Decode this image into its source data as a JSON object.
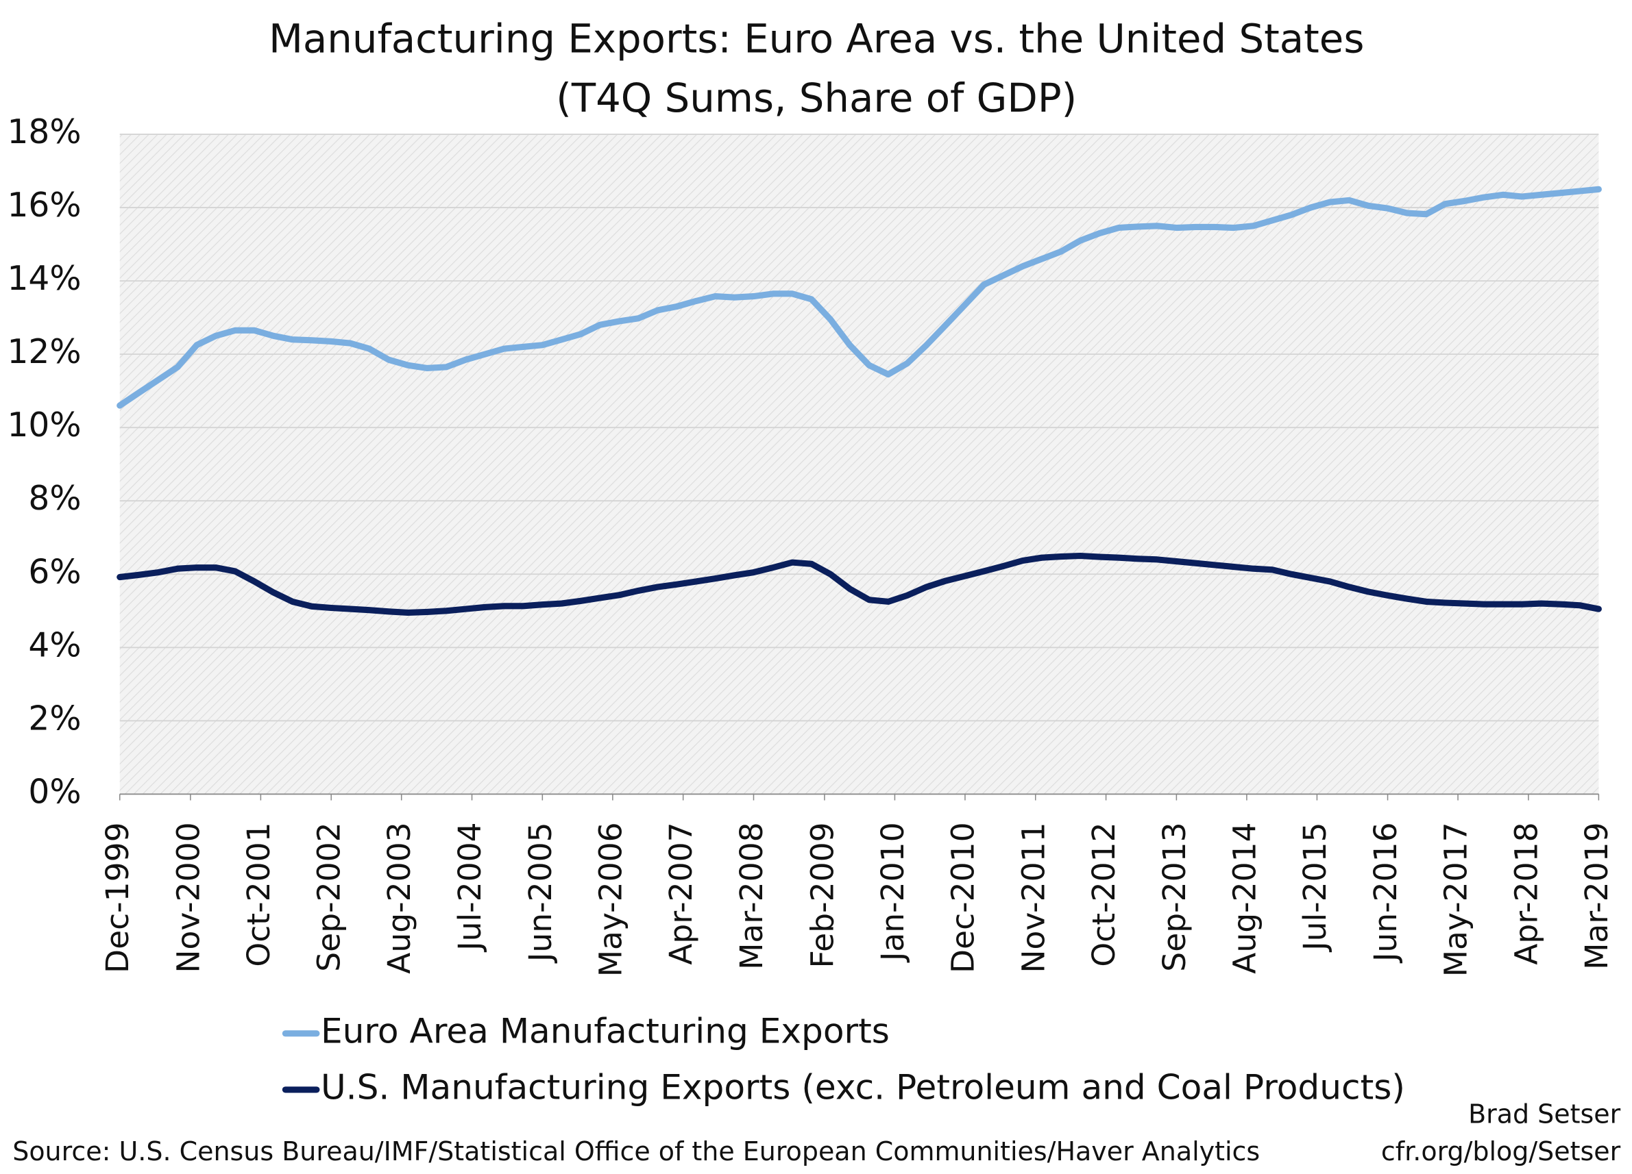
{
  "chart_data": {
    "type": "line",
    "title": "Manufacturing Exports: Euro Area vs. the United States",
    "subtitle": "(T4Q Sums, Share of GDP)",
    "x": [
      "Dec-1999",
      "Mar-2000",
      "Jun-2000",
      "Sep-2000",
      "Dec-2000",
      "Mar-2001",
      "Jun-2001",
      "Sep-2001",
      "Dec-2001",
      "Mar-2002",
      "Jun-2002",
      "Sep-2002",
      "Dec-2002",
      "Mar-2003",
      "Jun-2003",
      "Sep-2003",
      "Dec-2003",
      "Mar-2004",
      "Jun-2004",
      "Sep-2004",
      "Dec-2004",
      "Mar-2005",
      "Jun-2005",
      "Sep-2005",
      "Dec-2005",
      "Mar-2006",
      "Jun-2006",
      "Sep-2006",
      "Dec-2006",
      "Mar-2007",
      "Jun-2007",
      "Sep-2007",
      "Dec-2007",
      "Mar-2008",
      "Jun-2008",
      "Sep-2008",
      "Dec-2008",
      "Mar-2009",
      "Jun-2009",
      "Sep-2009",
      "Dec-2009",
      "Mar-2010",
      "Jun-2010",
      "Sep-2010",
      "Dec-2010",
      "Mar-2011",
      "Jun-2011",
      "Sep-2011",
      "Dec-2011",
      "Mar-2012",
      "Jun-2012",
      "Sep-2012",
      "Dec-2012",
      "Mar-2013",
      "Jun-2013",
      "Sep-2013",
      "Dec-2013",
      "Mar-2014",
      "Jun-2014",
      "Sep-2014",
      "Dec-2014",
      "Mar-2015",
      "Jun-2015",
      "Sep-2015",
      "Dec-2015",
      "Mar-2016",
      "Jun-2016",
      "Sep-2016",
      "Dec-2016",
      "Mar-2017",
      "Jun-2017",
      "Sep-2017",
      "Dec-2017",
      "Mar-2018",
      "Jun-2018",
      "Sep-2018",
      "Dec-2018",
      "Mar-2019"
    ],
    "xlim": [
      "Dec-1999",
      "Mar-2019"
    ],
    "xticks": [
      "Dec-1999",
      "Nov-2000",
      "Oct-2001",
      "Sep-2002",
      "Aug-2003",
      "Jul-2004",
      "Jun-2005",
      "May-2006",
      "Apr-2007",
      "Mar-2008",
      "Feb-2009",
      "Jan-2010",
      "Dec-2010",
      "Nov-2011",
      "Oct-2012",
      "Sep-2013",
      "Aug-2014",
      "Jul-2015",
      "Jun-2016",
      "May-2017",
      "Apr-2018",
      "Mar-2019"
    ],
    "ylim": [
      0,
      18
    ],
    "yticks": [
      {
        "value": 0,
        "label": "0%"
      },
      {
        "value": 2,
        "label": "2%"
      },
      {
        "value": 4,
        "label": "4%"
      },
      {
        "value": 6,
        "label": "6%"
      },
      {
        "value": 8,
        "label": "8%"
      },
      {
        "value": 10,
        "label": "10%"
      },
      {
        "value": 12,
        "label": "12%"
      },
      {
        "value": 14,
        "label": "14%"
      },
      {
        "value": 16,
        "label": "16%"
      },
      {
        "value": 18,
        "label": "18%"
      }
    ],
    "grid": true,
    "legend": "bottom",
    "series": [
      {
        "name": "Euro Area Manufacturing Exports",
        "color": "#7aaee0",
        "values": [
          10.6,
          10.95,
          11.3,
          11.65,
          12.25,
          12.5,
          12.65,
          12.65,
          12.5,
          12.4,
          12.38,
          12.35,
          12.3,
          12.15,
          11.85,
          11.7,
          11.62,
          11.65,
          11.85,
          12.0,
          12.15,
          12.2,
          12.25,
          12.4,
          12.55,
          12.8,
          12.9,
          12.98,
          13.2,
          13.3,
          13.45,
          13.58,
          13.55,
          13.58,
          13.65,
          13.65,
          13.5,
          12.95,
          12.25,
          11.7,
          11.45,
          11.75,
          12.25,
          12.8,
          13.35,
          13.9,
          14.15,
          14.4,
          14.6,
          14.8,
          15.1,
          15.3,
          15.45,
          15.48,
          15.5,
          15.45,
          15.47,
          15.47,
          15.45,
          15.5,
          15.65,
          15.8,
          16.0,
          16.15,
          16.2,
          16.05,
          15.98,
          15.85,
          15.82,
          16.1,
          16.18,
          16.28,
          16.35,
          16.3,
          16.35,
          16.4,
          16.45,
          16.5
        ]
      },
      {
        "name": "U.S. Manufacturing Exports (exc. Petroleum and Coal Products)",
        "color": "#0a1f5c",
        "values": [
          5.92,
          5.98,
          6.05,
          6.15,
          6.18,
          6.18,
          6.08,
          5.8,
          5.5,
          5.25,
          5.12,
          5.08,
          5.05,
          5.02,
          4.98,
          4.95,
          4.97,
          5.0,
          5.05,
          5.1,
          5.13,
          5.13,
          5.17,
          5.2,
          5.27,
          5.35,
          5.43,
          5.55,
          5.65,
          5.72,
          5.8,
          5.88,
          5.97,
          6.05,
          6.18,
          6.32,
          6.28,
          6.0,
          5.6,
          5.3,
          5.25,
          5.42,
          5.65,
          5.82,
          5.95,
          6.08,
          6.22,
          6.37,
          6.45,
          6.48,
          6.5,
          6.47,
          6.45,
          6.42,
          6.4,
          6.35,
          6.3,
          6.25,
          6.2,
          6.15,
          6.12,
          6.0,
          5.9,
          5.8,
          5.65,
          5.52,
          5.42,
          5.33,
          5.25,
          5.22,
          5.2,
          5.18,
          5.18,
          5.18,
          5.2,
          5.18,
          5.15,
          5.05
        ]
      }
    ],
    "source": "Source: U.S. Census Bureau/IMF/Statistical Office of the European Communities/Haver Analytics",
    "author": "Brad Setser",
    "website": "cfr.org/blog/Setser"
  }
}
